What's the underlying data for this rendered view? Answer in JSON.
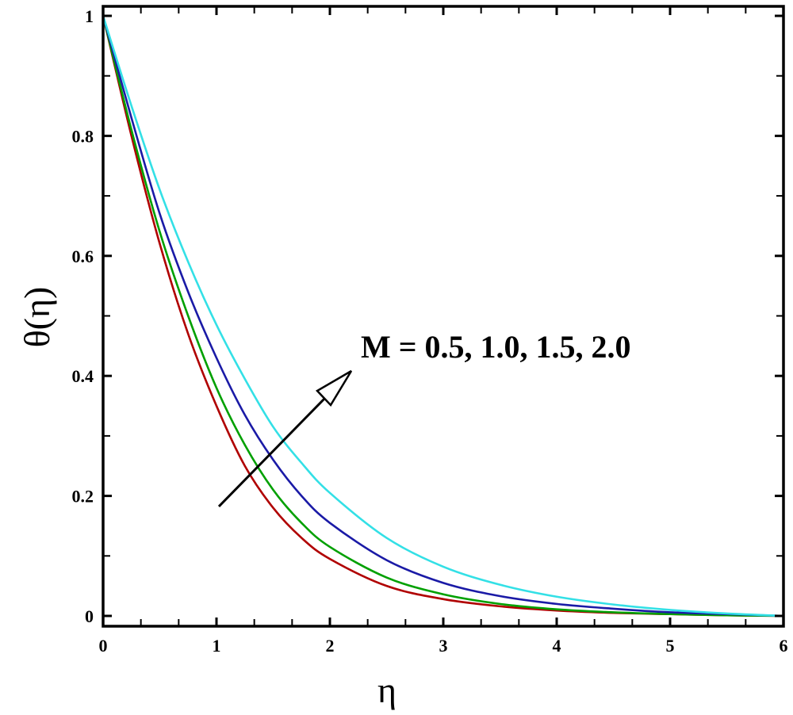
{
  "chart_data": {
    "type": "line",
    "title": "",
    "xlabel": "η",
    "ylabel": "θ(η)",
    "xlim": [
      0,
      6
    ],
    "ylim": [
      0,
      1
    ],
    "x_ticks": [
      0,
      1,
      2,
      3,
      4,
      5,
      6
    ],
    "y_ticks": [
      0,
      0.2,
      0.4,
      0.6,
      0.8,
      1
    ],
    "x_tick_labels": [
      "0",
      "1",
      "2",
      "3",
      "4",
      "5",
      "6"
    ],
    "y_tick_labels": [
      "0",
      "0.2",
      "0.4",
      "0.6",
      "0.8",
      "1"
    ],
    "grid": false,
    "legend": "none (annotated with arrow)",
    "annotation": {
      "text": "M = 0.5, 1.0, 1.5, 2.0",
      "arrow": {
        "from": [
          1.0,
          0.185
        ],
        "to": [
          2.2,
          0.405
        ]
      }
    },
    "x": [
      0,
      0.25,
      0.5,
      0.75,
      1.0,
      1.25,
      1.5,
      1.75,
      2.0,
      2.5,
      3.0,
      3.5,
      4.0,
      4.5,
      5.0,
      5.5,
      6.0
    ],
    "series": [
      {
        "name": "M = 0.5",
        "color": "#b00000",
        "values": [
          1.0,
          0.8,
          0.62,
          0.47,
          0.35,
          0.25,
          0.18,
          0.13,
          0.095,
          0.05,
          0.028,
          0.016,
          0.009,
          0.005,
          0.003,
          0.001,
          0.0
        ]
      },
      {
        "name": "M = 1.0",
        "color": "#00a000",
        "values": [
          1.0,
          0.81,
          0.64,
          0.5,
          0.38,
          0.285,
          0.21,
          0.155,
          0.115,
          0.064,
          0.036,
          0.02,
          0.011,
          0.006,
          0.003,
          0.001,
          0.0
        ]
      },
      {
        "name": "M = 1.5",
        "color": "#1a1aa6",
        "values": [
          1.0,
          0.83,
          0.67,
          0.54,
          0.43,
          0.335,
          0.26,
          0.2,
          0.155,
          0.093,
          0.055,
          0.033,
          0.02,
          0.012,
          0.006,
          0.003,
          0.0
        ]
      },
      {
        "name": "M = 2.0",
        "color": "#33e0e6",
        "values": [
          1.0,
          0.85,
          0.71,
          0.59,
          0.485,
          0.395,
          0.315,
          0.255,
          0.205,
          0.13,
          0.082,
          0.052,
          0.032,
          0.019,
          0.01,
          0.004,
          0.0
        ]
      }
    ]
  }
}
